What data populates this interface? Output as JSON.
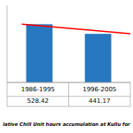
{
  "chart_data": {
    "type": "bar",
    "title": "lative Chill Unit hours accumulation at Kullu for",
    "categories": [
      "1986-1995",
      "1996-2005"
    ],
    "series": [
      {
        "type": "bar",
        "color": "#2878C0",
        "values": [
          528.42,
          441.17
        ]
      },
      {
        "type": "line",
        "color": "#FF0000",
        "values": [
          528.42,
          441.17
        ]
      }
    ],
    "ylim": [
      0,
      700
    ],
    "data_labels": true
  }
}
